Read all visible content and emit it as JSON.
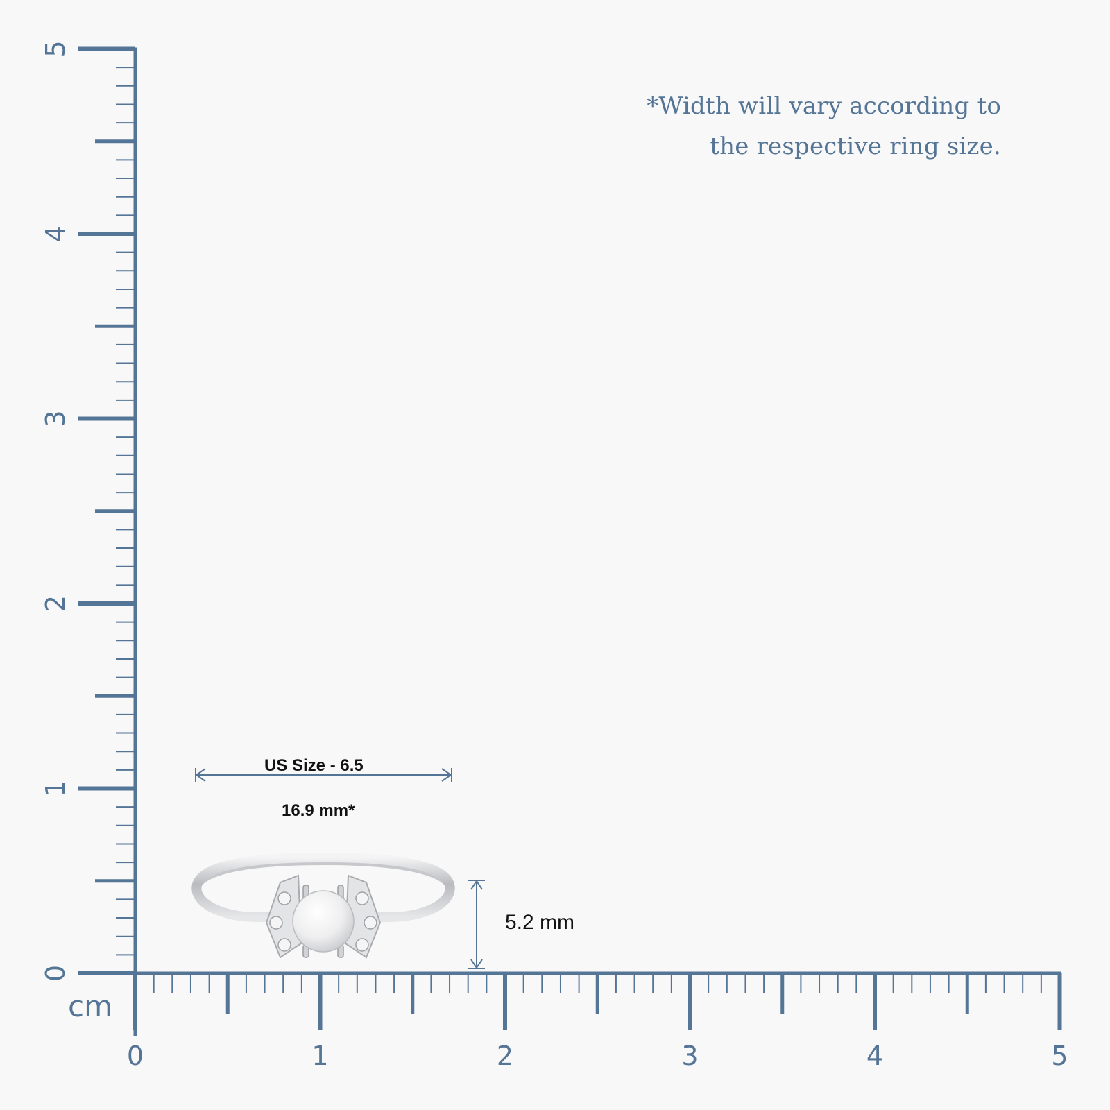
{
  "note": {
    "line1": "*Width will vary according to",
    "line2": "the respective ring size."
  },
  "ruler": {
    "unit": "cm",
    "x_tick_labels": [
      "0",
      "1",
      "2",
      "3",
      "4",
      "5"
    ],
    "y_tick_labels": [
      "0",
      "1",
      "2",
      "3",
      "4",
      "5"
    ],
    "color": "#547596"
  },
  "ring": {
    "size_label": "US Size - 6.5",
    "width_label": "16.9 mm*",
    "height_label": "5.2 mm",
    "metal_color": "#d9dadc",
    "pearl_color": "#f1f1f2"
  }
}
